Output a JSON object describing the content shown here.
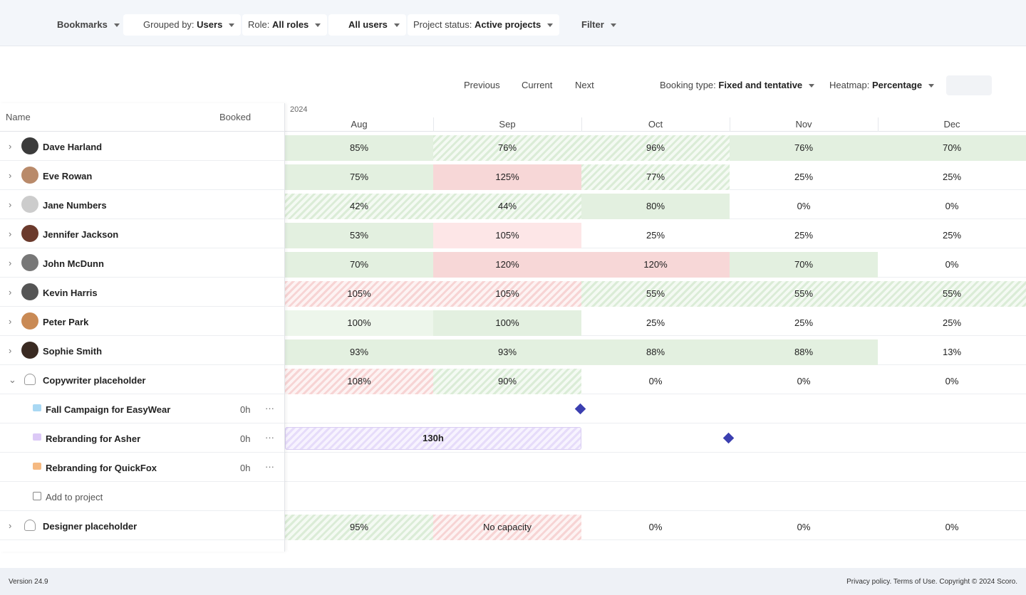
{
  "filters": [
    {
      "label": "Bookmarks"
    },
    {
      "label": "Grouped by:",
      "value": "Users"
    },
    {
      "label": "Role:",
      "value": "All roles"
    },
    {
      "value": "All users"
    },
    {
      "label": "Project status:",
      "value": "Active projects"
    },
    {
      "label": "Filter"
    }
  ],
  "nav": {
    "previous": "Previous",
    "current": "Current",
    "next": "Next"
  },
  "options": [
    {
      "label": "Booking type:",
      "value": "Fixed and tentative"
    },
    {
      "label": "Heatmap:",
      "value": "Percentage"
    }
  ],
  "columns": {
    "name": "Name",
    "booked": "Booked",
    "year": "2024",
    "months": [
      "Aug",
      "Sep",
      "Oct",
      "Nov",
      "Dec"
    ]
  },
  "rows": [
    {
      "type": "user",
      "name": "Dave Harland",
      "cells": [
        "85%",
        "76%",
        "96%",
        "76%",
        "70%"
      ],
      "tones": [
        "g",
        "G",
        "G",
        "g",
        "g"
      ]
    },
    {
      "type": "user",
      "name": "Eve Rowan",
      "cells": [
        "75%",
        "125%",
        "77%",
        "25%",
        "25%"
      ],
      "tones": [
        "g",
        "r",
        "G",
        "n",
        "n"
      ]
    },
    {
      "type": "user",
      "name": "Jane Numbers",
      "cells": [
        "42%",
        "44%",
        "80%",
        "0%",
        "0%"
      ],
      "tones": [
        "G",
        "G",
        "g",
        "n",
        "n"
      ]
    },
    {
      "type": "user",
      "name": "Jennifer Jackson",
      "cells": [
        "53%",
        "105%",
        "25%",
        "25%",
        "25%"
      ],
      "tones": [
        "g",
        "p",
        "n",
        "n",
        "n"
      ]
    },
    {
      "type": "user",
      "name": "John McDunn",
      "cells": [
        "70%",
        "120%",
        "120%",
        "70%",
        "0%"
      ],
      "tones": [
        "g",
        "r",
        "r",
        "g",
        "n"
      ]
    },
    {
      "type": "user",
      "name": "Kevin Harris",
      "cells": [
        "105%",
        "105%",
        "55%",
        "55%",
        "55%"
      ],
      "tones": [
        "R",
        "R",
        "G",
        "G",
        "G"
      ]
    },
    {
      "type": "user",
      "name": "Peter Park",
      "cells": [
        "100%",
        "100%",
        "25%",
        "25%",
        "25%"
      ],
      "tones": [
        "l",
        "g",
        "n",
        "n",
        "n"
      ]
    },
    {
      "type": "user",
      "name": "Sophie Smith",
      "cells": [
        "93%",
        "93%",
        "88%",
        "88%",
        "13%"
      ],
      "tones": [
        "g",
        "g",
        "g",
        "g",
        "n"
      ]
    },
    {
      "type": "placeholder",
      "name": "Copywriter placeholder",
      "cells": [
        "108%",
        "90%",
        "0%",
        "0%",
        "0%"
      ],
      "tones": [
        "R",
        "G",
        "n",
        "n",
        "n"
      ]
    },
    {
      "type": "project",
      "name": "Fall Campaign for EasyWear",
      "booked": "0h",
      "more": "···",
      "color": "#a9d8f3"
    },
    {
      "type": "project",
      "name": "Rebranding for Asher",
      "booked": "0h",
      "more": "···",
      "color": "#dcc9f6",
      "bar": "130h"
    },
    {
      "type": "project",
      "name": "Rebranding for QuickFox",
      "booked": "0h",
      "more": "···",
      "color": "#f5b981"
    },
    {
      "type": "add",
      "name": "Add to project"
    },
    {
      "type": "placeholder",
      "name": "Designer placeholder",
      "cells": [
        "95%",
        "No capacity",
        "0%",
        "0%",
        "0%"
      ],
      "tones": [
        "G",
        "R",
        "n",
        "n",
        "n"
      ]
    }
  ],
  "footer": {
    "version": "Version 24.9",
    "legal": "Privacy policy. Terms of Use. Copyright © 2024 Scoro."
  }
}
